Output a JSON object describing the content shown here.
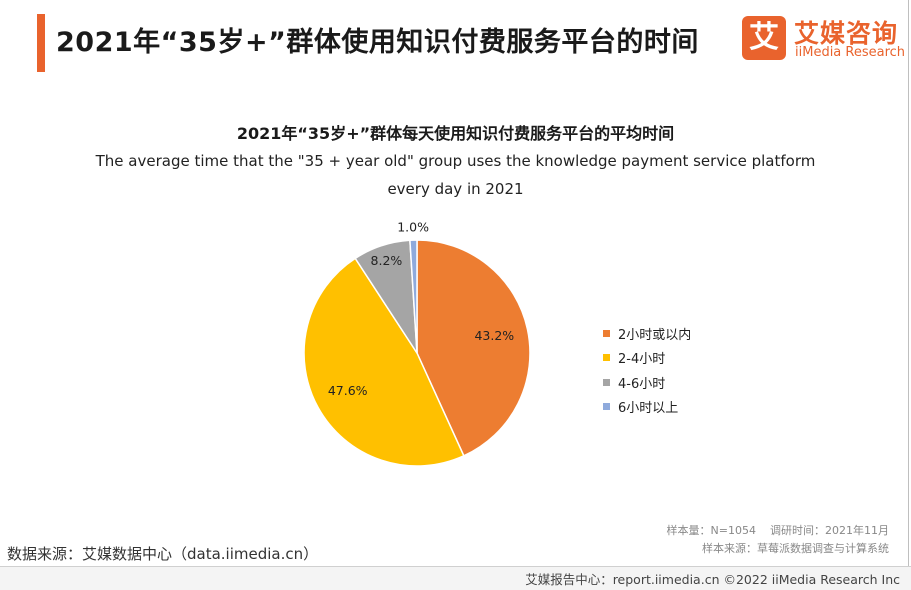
{
  "header": {
    "title": "2021年“35岁+”群体使用知识付费服务平台的时间",
    "accent_color": "#e9632d"
  },
  "logo": {
    "mark": "艾",
    "name_cn": "艾媒咨询",
    "name_en": "iiMedia Research"
  },
  "chart_data": {
    "type": "pie",
    "title": "2021年“35岁+”群体每天使用知识付费服务平台的平均时间",
    "subtitle_lines": [
      "The average time that the \"35 + year old\" group uses the knowledge payment service platform",
      "every day in 2021"
    ],
    "categories": [
      "2小时或以内",
      "2-4小时",
      "4-6小时",
      "6小时以上"
    ],
    "values": [
      43.2,
      47.6,
      8.2,
      1.0
    ],
    "value_labels": [
      "43.2%",
      "47.6%",
      "8.2%",
      "1.0%"
    ],
    "colors": [
      "#ed7d31",
      "#ffc000",
      "#a5a5a5",
      "#8faadc"
    ],
    "legend_position": "right"
  },
  "footer": {
    "sample_size": "样本量：N=1054",
    "survey_time": "调研时间：2021年11月",
    "sample_source": "样本来源：草莓派数据调查与计算系统",
    "data_source": "数据来源：艾媒数据中心（data.iimedia.cn）",
    "copyright": "艾媒报告中心：report.iimedia.cn  ©2022  iiMedia Research Inc"
  }
}
